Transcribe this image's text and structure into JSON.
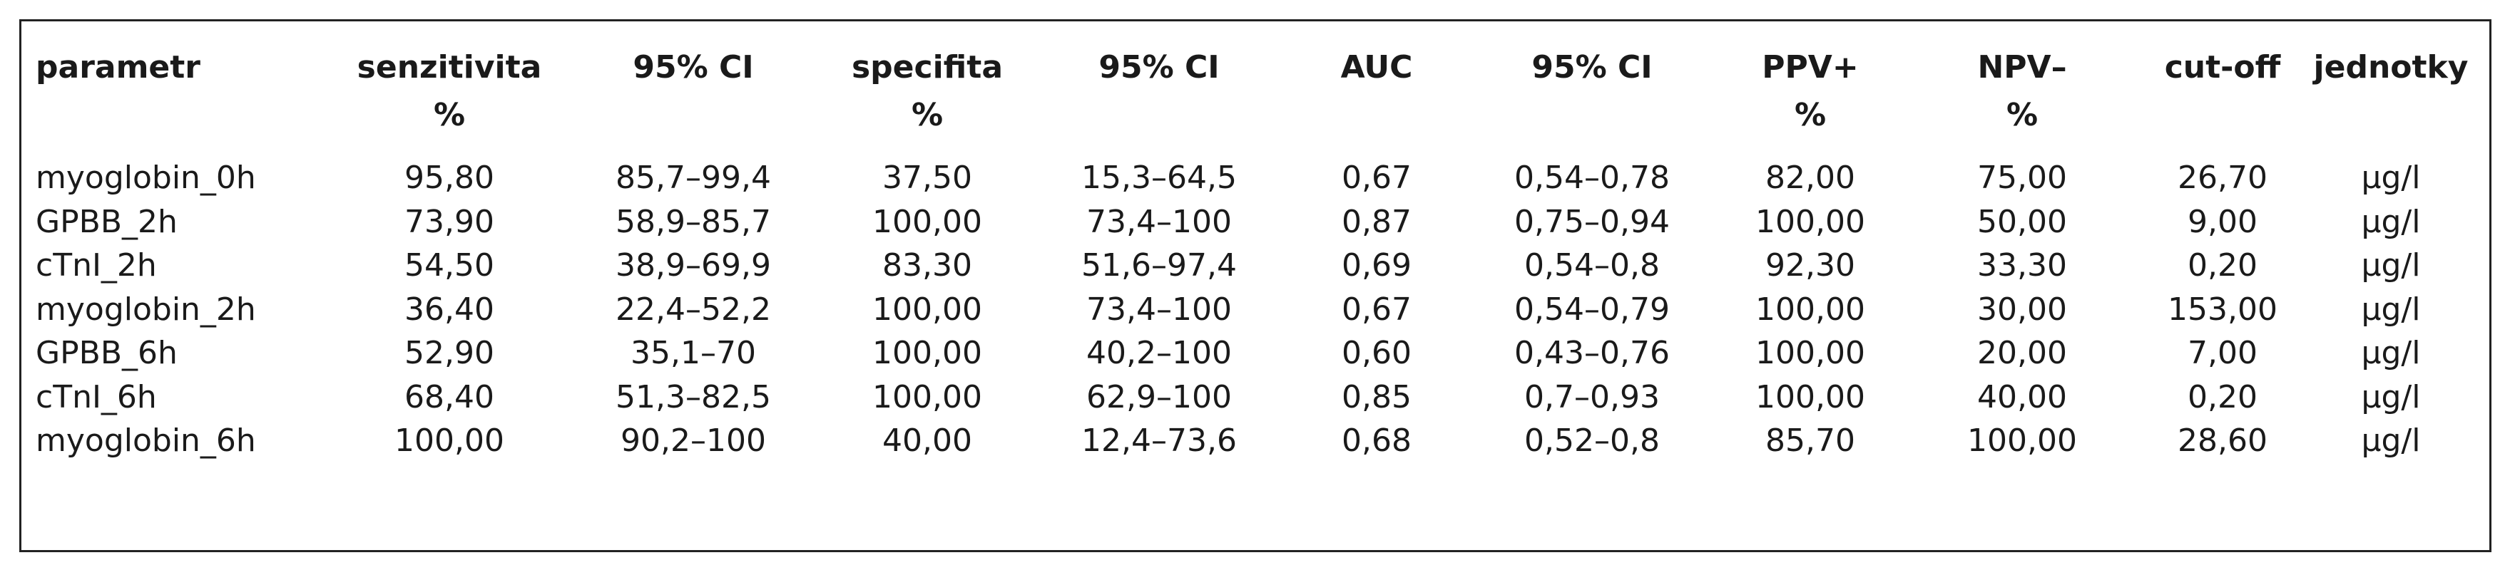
{
  "table": {
    "header": [
      [
        "parametr"
      ],
      [
        "senzitivita",
        "%"
      ],
      [
        "95% CI"
      ],
      [
        "specifita",
        "%"
      ],
      [
        "95% CI"
      ],
      [
        "AUC"
      ],
      [
        "95% CI"
      ],
      [
        "PPV+",
        "%"
      ],
      [
        "NPV–",
        "%"
      ],
      [
        "cut-off"
      ],
      [
        "jednotky"
      ]
    ],
    "rows": [
      [
        "myoglobin_0h",
        "95,80",
        "85,7–99,4",
        "37,50",
        "15,3–64,5",
        "0,67",
        "0,54–0,78",
        "82,00",
        "75,00",
        "26,70",
        "µg/l"
      ],
      [
        "GPBB_2h",
        "73,90",
        "58,9–85,7",
        "100,00",
        "73,4–100",
        "0,87",
        "0,75–0,94",
        "100,00",
        "50,00",
        "9,00",
        "µg/l"
      ],
      [
        "cTnI_2h",
        "54,50",
        "38,9–69,9",
        "83,30",
        "51,6–97,4",
        "0,69",
        "0,54–0,8",
        "92,30",
        "33,30",
        "0,20",
        "µg/l"
      ],
      [
        "myoglobin_2h",
        "36,40",
        "22,4–52,2",
        "100,00",
        "73,4–100",
        "0,67",
        "0,54–0,79",
        "100,00",
        "30,00",
        "153,00",
        "µg/l"
      ],
      [
        "GPBB_6h",
        "52,90",
        "35,1–70",
        "100,00",
        "40,2–100",
        "0,60",
        "0,43–0,76",
        "100,00",
        "20,00",
        "7,00",
        "µg/l"
      ],
      [
        "cTnI_6h",
        "68,40",
        "51,3–82,5",
        "100,00",
        "62,9–100",
        "0,85",
        "0,7–0,93",
        "100,00",
        "40,00",
        "0,20",
        "µg/l"
      ],
      [
        "myoglobin_6h",
        "100,00",
        "90,2–100",
        "40,00",
        "12,4–73,6",
        "0,68",
        "0,52–0,8",
        "85,70",
        "100,00",
        "28,60",
        "µg/l"
      ]
    ]
  }
}
